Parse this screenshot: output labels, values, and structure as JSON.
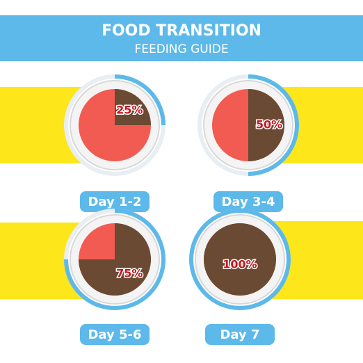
{
  "header": {
    "title": "FOOD TRANSITION",
    "subtitle": "FEEDING GUIDE"
  },
  "stages": [
    {
      "day": "Day 1-2",
      "share": 25,
      "share_label": "25%"
    },
    {
      "day": "Day 3-4",
      "share": 50,
      "share_label": "50%"
    },
    {
      "day": "Day 5-6",
      "share": 75,
      "share_label": "75%"
    },
    {
      "day": "Day 7",
      "share": 100,
      "share_label": "100%"
    }
  ]
}
